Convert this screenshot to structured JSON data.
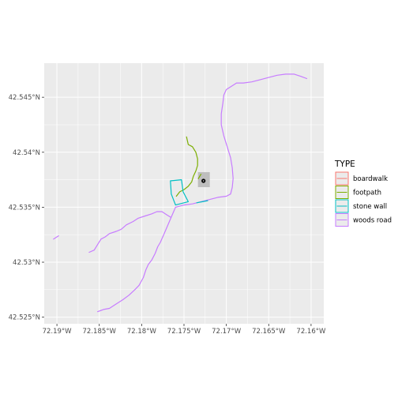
{
  "chart_data": {
    "type": "map",
    "legend": {
      "title": "TYPE",
      "placement": "right",
      "entries": [
        {
          "label": "boardwalk",
          "color": "#F8766D"
        },
        {
          "label": "footpath",
          "color": "#7CAE00"
        },
        {
          "label": "stone wall",
          "color": "#00BFC4"
        },
        {
          "label": "woods road",
          "color": "#C77CFF"
        }
      ]
    },
    "x_axis": {
      "ticks": [
        {
          "value": -72.19,
          "label": "72.19°W"
        },
        {
          "value": -72.185,
          "label": "72.185°W"
        },
        {
          "value": -72.18,
          "label": "72.18°W"
        },
        {
          "value": -72.175,
          "label": "72.175°W"
        },
        {
          "value": -72.17,
          "label": "72.17°W"
        },
        {
          "value": -72.165,
          "label": "72.165°W"
        },
        {
          "value": -72.16,
          "label": "72.16°W"
        }
      ]
    },
    "y_axis": {
      "ticks": [
        {
          "value": 42.525,
          "label": "42.525°N"
        },
        {
          "value": 42.53,
          "label": "42.53°N"
        },
        {
          "value": 42.535,
          "label": "42.535°N"
        },
        {
          "value": 42.54,
          "label": "42.54°N"
        },
        {
          "value": 42.545,
          "label": "42.545°N"
        }
      ]
    },
    "xlim": [
      -72.1915,
      -72.1585
    ],
    "ylim": [
      42.5244,
      42.5481
    ],
    "grid": true,
    "background": "#EBEBEB",
    "marker": {
      "color": "#000000",
      "highlight_color": "#BEBEBE",
      "x": -72.1727,
      "y": 42.5374
    },
    "series": [
      {
        "type": "woods road",
        "points": [
          [
            -72.1904,
            42.5321
          ],
          [
            -72.1898,
            42.5324
          ]
        ]
      },
      {
        "type": "woods road",
        "points": [
          [
            -72.1862,
            42.5309
          ],
          [
            -72.1856,
            42.5311
          ],
          [
            -72.1852,
            42.5316
          ],
          [
            -72.1848,
            42.5321
          ],
          [
            -72.1843,
            42.5323
          ],
          [
            -72.1838,
            42.5326
          ],
          [
            -72.183,
            42.5328
          ],
          [
            -72.1824,
            42.533
          ],
          [
            -72.1818,
            42.5334
          ],
          [
            -72.181,
            42.5337
          ],
          [
            -72.1804,
            42.534
          ],
          [
            -72.1796,
            42.5342
          ],
          [
            -72.1788,
            42.5344
          ],
          [
            -72.1782,
            42.5346
          ],
          [
            -72.1776,
            42.5346
          ],
          [
            -72.177,
            42.5343
          ],
          [
            -72.1766,
            42.5341
          ]
        ]
      },
      {
        "type": "woods road",
        "points": [
          [
            -72.1852,
            42.5255
          ],
          [
            -72.1845,
            42.5257
          ],
          [
            -72.1838,
            42.5258
          ],
          [
            -72.183,
            42.5262
          ],
          [
            -72.1822,
            42.5266
          ],
          [
            -72.1815,
            42.527
          ],
          [
            -72.1808,
            42.5275
          ],
          [
            -72.1803,
            42.5279
          ],
          [
            -72.1798,
            42.5286
          ],
          [
            -72.1795,
            42.5293
          ],
          [
            -72.1792,
            42.5298
          ],
          [
            -72.1788,
            42.5302
          ],
          [
            -72.1784,
            42.5308
          ],
          [
            -72.1781,
            42.5314
          ],
          [
            -72.1778,
            42.5318
          ],
          [
            -72.1774,
            42.5325
          ],
          [
            -72.177,
            42.5332
          ],
          [
            -72.1765,
            42.5341
          ],
          [
            -72.176,
            42.535
          ]
        ]
      },
      {
        "type": "woods road",
        "points": [
          [
            -72.176,
            42.535
          ],
          [
            -72.175,
            42.5352
          ],
          [
            -72.174,
            42.5353
          ],
          [
            -72.173,
            42.5355
          ],
          [
            -72.172,
            42.5357
          ],
          [
            -72.171,
            42.5359
          ],
          [
            -72.17,
            42.536
          ],
          [
            -72.1695,
            42.5362
          ],
          [
            -72.1693,
            42.5368
          ],
          [
            -72.1692,
            42.5376
          ],
          [
            -72.1693,
            42.5386
          ],
          [
            -72.1695,
            42.5395
          ],
          [
            -72.1699,
            42.5405
          ],
          [
            -72.1703,
            42.5415
          ],
          [
            -72.1706,
            42.5425
          ],
          [
            -72.1706,
            42.5435
          ],
          [
            -72.1704,
            42.5445
          ],
          [
            -72.1703,
            42.5452
          ],
          [
            -72.17,
            42.5457
          ],
          [
            -72.1694,
            42.546
          ],
          [
            -72.1688,
            42.5463
          ],
          [
            -72.168,
            42.5463
          ],
          [
            -72.167,
            42.5464
          ],
          [
            -72.166,
            42.5466
          ],
          [
            -72.165,
            42.5468
          ],
          [
            -72.164,
            42.547
          ],
          [
            -72.163,
            42.5471
          ],
          [
            -72.162,
            42.5471
          ],
          [
            -72.1612,
            42.5469
          ],
          [
            -72.1605,
            42.5467
          ]
        ]
      },
      {
        "type": "footpath",
        "points": [
          [
            -72.1747,
            42.5414
          ],
          [
            -72.1745,
            42.5407
          ],
          [
            -72.174,
            42.5405
          ],
          [
            -72.1736,
            42.54
          ],
          [
            -72.1734,
            42.5394
          ],
          [
            -72.1734,
            42.5388
          ],
          [
            -72.1736,
            42.5383
          ],
          [
            -72.1739,
            42.5378
          ],
          [
            -72.1741,
            42.5373
          ],
          [
            -72.1745,
            42.5369
          ],
          [
            -72.175,
            42.5366
          ],
          [
            -72.1755,
            42.5364
          ],
          [
            -72.1759,
            42.536
          ]
        ]
      },
      {
        "type": "stone wall",
        "points": [
          [
            -72.1766,
            42.5374
          ],
          [
            -72.1753,
            42.5375
          ],
          [
            -72.1751,
            42.5364
          ],
          [
            -72.1745,
            42.5355
          ],
          [
            -72.176,
            42.5352
          ],
          [
            -72.1765,
            42.5362
          ],
          [
            -72.1766,
            42.5374
          ]
        ]
      },
      {
        "type": "stone wall",
        "points": [
          [
            -72.1735,
            42.5354
          ],
          [
            -72.1722,
            42.5356
          ]
        ]
      },
      {
        "type": "footpath",
        "points": [
          [
            -72.1733,
            42.5376
          ],
          [
            -72.173,
            42.538
          ]
        ]
      }
    ]
  }
}
